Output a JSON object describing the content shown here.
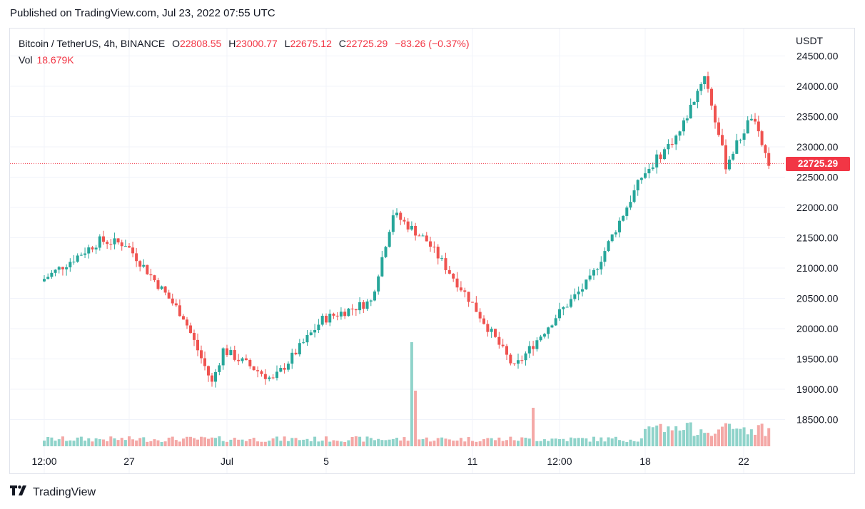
{
  "header": {
    "published": "Published on TradingView.com, Jul 23, 2022 07:55 UTC"
  },
  "legend": {
    "symbol": "Bitcoin / TetherUS, 4h, BINANCE",
    "open_label": "O",
    "open": "22808.55",
    "high_label": "H",
    "high": "23000.77",
    "low_label": "L",
    "low": "22675.12",
    "close_label": "C",
    "close": "22725.29",
    "change": "−83.26 (−0.37%)",
    "volume_label": "Vol",
    "volume": "18.679K"
  },
  "price_axis": {
    "currency": "USDT",
    "last_price_tag": "22725.29"
  },
  "brand": {
    "name": "TradingView"
  },
  "colors": {
    "up": "#26a69a",
    "down": "#ef5350",
    "up_vol": "#8fd3ca",
    "down_vol": "#f4a8a6",
    "tag": "#f23645",
    "grid": "#f0f3fa"
  },
  "chart_data": {
    "type": "candlestick",
    "title": "Bitcoin / TetherUS, 4h, BINANCE",
    "ylabel": "USDT",
    "ylim": [
      18250,
      24650
    ],
    "y_ticks": [
      "18500.00",
      "19000.00",
      "19500.00",
      "20000.00",
      "20500.00",
      "21000.00",
      "21500.00",
      "22000.00",
      "22500.00",
      "23000.00",
      "23500.00",
      "24000.00",
      "24500.00"
    ],
    "x_ticks": [
      "12:00",
      "27",
      "Jul",
      "5",
      "11",
      "12:00",
      "18",
      "22"
    ],
    "last_price": 22725.29,
    "candles": [
      {
        "key": "2022-06-24 12:00",
        "close": 20780
      },
      {
        "key": "2022-06-26 04:00",
        "close": 21450
      },
      {
        "key": "2022-06-27 00:00",
        "close": 21400
      },
      {
        "key": "2022-06-28 16:00",
        "close": 20200
      },
      {
        "key": "2022-06-30 00:00",
        "close": 19100
      },
      {
        "key": "2022-07-01 00:00",
        "close": 19650
      },
      {
        "key": "2022-07-03 00:00",
        "close": 19150
      },
      {
        "key": "2022-07-05 00:00",
        "close": 20150
      },
      {
        "key": "2022-07-07 00:00",
        "close": 20450
      },
      {
        "key": "2022-07-08 04:00",
        "close": 21900
      },
      {
        "key": "2022-07-09 12:00",
        "close": 21450
      },
      {
        "key": "2022-07-11 00:00",
        "close": 20500
      },
      {
        "key": "2022-07-12 16:00",
        "close": 19350
      },
      {
        "key": "2022-07-14 12:00",
        "close": 20200
      },
      {
        "key": "2022-07-16 00:00",
        "close": 20800
      },
      {
        "key": "2022-07-18 00:00",
        "close": 22500
      },
      {
        "key": "2022-07-19 08:00",
        "close": 23250
      },
      {
        "key": "2022-07-20 08:00",
        "close": 24200
      },
      {
        "key": "2022-07-21 04:00",
        "close": 22700
      },
      {
        "key": "2022-07-22 08:00",
        "close": 23500
      },
      {
        "key": "2022-07-23 04:00",
        "close": 22725.29
      }
    ],
    "volume_last": "18.679K"
  }
}
